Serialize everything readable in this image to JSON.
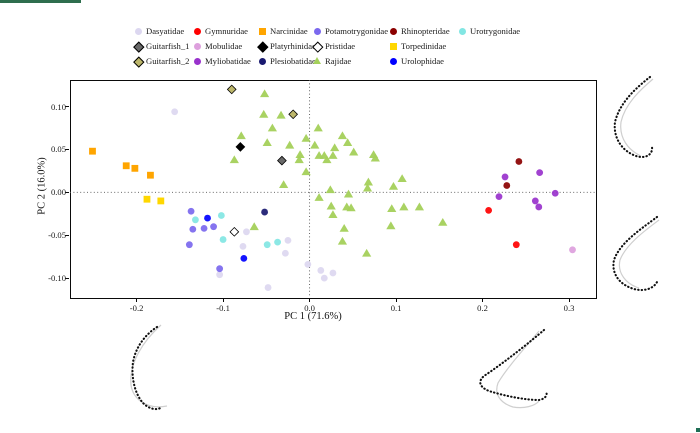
{
  "frame": {
    "accent_color": "#2e6e4e",
    "corner_dot_color": "#1f6e55"
  },
  "legend": {
    "position": "top",
    "columns": [
      {
        "items": [
          {
            "label": "Dasyatidae",
            "marker": "circle",
            "color": "#DCD7F0"
          },
          {
            "label": "Guitarfish_1",
            "marker": "diamond",
            "color": "#696969"
          },
          {
            "label": "Guitarfish_2",
            "marker": "diamond",
            "color": "#BDB76B"
          }
        ]
      },
      {
        "items": [
          {
            "label": "Gymnuridae",
            "marker": "circle",
            "color": "#FF0000"
          },
          {
            "label": "Mobulidae",
            "marker": "circle",
            "color": "#DDA0DD"
          },
          {
            "label": "Myliobatidae",
            "marker": "circle",
            "color": "#9932CC"
          }
        ]
      },
      {
        "items": [
          {
            "label": "Narcinidae",
            "marker": "square",
            "color": "#FFA500"
          },
          {
            "label": "Platyrhinidae",
            "marker": "diamond",
            "color": "#000000"
          },
          {
            "label": "Plesiobatidae",
            "marker": "circle",
            "color": "#191970"
          }
        ]
      },
      {
        "items": [
          {
            "label": "Potamotrygonidae",
            "marker": "circle",
            "color": "#7B68EE"
          },
          {
            "label": "Pristidae",
            "marker": "open-diamond",
            "color": "#FFFFFF"
          },
          {
            "label": "Rajidae",
            "marker": "triangle",
            "color": "#A4D05A"
          }
        ]
      },
      {
        "items": [
          {
            "label": "Rhinopteridae",
            "marker": "circle",
            "color": "#8B0000"
          },
          {
            "label": "Torpedinidae",
            "marker": "square",
            "color": "#FFD700"
          },
          {
            "label": "Urolophidae",
            "marker": "circle",
            "color": "#0000FF"
          }
        ]
      },
      {
        "items": [
          {
            "label": "Urotrygonidae",
            "marker": "circle",
            "color": "#82E6E3"
          }
        ]
      }
    ]
  },
  "chart_data": {
    "type": "scatter",
    "title": "",
    "xlabel": "PC 1 (71.6%)",
    "ylabel": "PC 2 (16.0%)",
    "xlim": [
      -0.277,
      0.33
    ],
    "ylim": [
      -0.122,
      0.131
    ],
    "xticks": [
      {
        "v": -0.2,
        "label": "-0.2"
      },
      {
        "v": -0.1,
        "label": "-0.1"
      },
      {
        "v": 0.0,
        "label": "0.0"
      },
      {
        "v": 0.1,
        "label": "0.1"
      },
      {
        "v": 0.2,
        "label": "0.2"
      },
      {
        "v": 0.3,
        "label": "0.3"
      }
    ],
    "yticks": [
      {
        "v": 0.1,
        "label": "0.10"
      },
      {
        "v": 0.05,
        "label": "0.05"
      },
      {
        "v": 0.0,
        "label": "0.00"
      },
      {
        "v": -0.05,
        "label": "-0.05"
      },
      {
        "v": -0.1,
        "label": "-0.10"
      }
    ],
    "grid": false,
    "reference_lines": {
      "x": 0.0,
      "y": 0.0,
      "style": "dotted"
    },
    "legend_position": "top",
    "series": [
      {
        "name": "Dasyatidae",
        "marker": "circle",
        "color": "#DCD7F0",
        "points": [
          [
            -0.156,
            0.094
          ],
          [
            -0.077,
            -0.063
          ],
          [
            -0.073,
            -0.046
          ],
          [
            -0.025,
            -0.056
          ],
          [
            -0.028,
            -0.071
          ],
          [
            -0.104,
            -0.096
          ],
          [
            -0.048,
            -0.111
          ],
          [
            -0.002,
            -0.084
          ],
          [
            0.013,
            -0.091
          ],
          [
            0.017,
            -0.1
          ],
          [
            0.027,
            -0.094
          ]
        ]
      },
      {
        "name": "Gymnuridae",
        "marker": "circle",
        "color": "#FF0000",
        "points": [
          [
            0.207,
            -0.021
          ],
          [
            0.239,
            -0.061
          ]
        ]
      },
      {
        "name": "Narcinidae",
        "marker": "square",
        "color": "#FFA500",
        "points": [
          [
            -0.251,
            0.048
          ],
          [
            -0.212,
            0.031
          ],
          [
            -0.202,
            0.028
          ],
          [
            -0.184,
            0.02
          ]
        ]
      },
      {
        "name": "Potamotrygonidae",
        "marker": "circle",
        "color": "#7B68EE",
        "points": [
          [
            -0.137,
            -0.022
          ],
          [
            -0.135,
            -0.043
          ],
          [
            -0.122,
            -0.042
          ],
          [
            -0.111,
            -0.04
          ],
          [
            -0.139,
            -0.061
          ],
          [
            -0.104,
            -0.089
          ]
        ]
      },
      {
        "name": "Rhinopteridae",
        "marker": "circle",
        "color": "#8B0000",
        "points": [
          [
            0.242,
            0.036
          ],
          [
            0.228,
            0.008
          ]
        ]
      },
      {
        "name": "Urotrygonidae",
        "marker": "circle",
        "color": "#82E6E3",
        "points": [
          [
            -0.132,
            -0.032
          ],
          [
            -0.102,
            -0.027
          ],
          [
            -0.1,
            -0.055
          ],
          [
            -0.049,
            -0.061
          ],
          [
            -0.037,
            -0.058
          ]
        ]
      },
      {
        "name": "Guitarfish_1",
        "marker": "diamond",
        "color": "#696969",
        "points": [
          [
            -0.032,
            0.037
          ]
        ]
      },
      {
        "name": "Mobulidae",
        "marker": "circle",
        "color": "#DDA0DD",
        "points": [
          [
            0.304,
            -0.067
          ]
        ]
      },
      {
        "name": "Platyrhinidae",
        "marker": "diamond",
        "color": "#000000",
        "points": [
          [
            -0.08,
            0.053
          ]
        ]
      },
      {
        "name": "Pristidae",
        "marker": "open-diamond",
        "color": "#FFFFFF",
        "points": [
          [
            -0.087,
            -0.046
          ]
        ]
      },
      {
        "name": "Torpedinidae",
        "marker": "square",
        "color": "#FFD700",
        "points": [
          [
            -0.188,
            -0.008
          ],
          [
            -0.172,
            -0.01
          ]
        ]
      },
      {
        "name": "Guitarfish_2",
        "marker": "diamond",
        "color": "#BDB76B",
        "points": [
          [
            -0.09,
            0.12
          ],
          [
            -0.019,
            0.091
          ]
        ]
      },
      {
        "name": "Myliobatidae",
        "marker": "circle",
        "color": "#9932CC",
        "points": [
          [
            0.226,
            0.018
          ],
          [
            0.266,
            0.023
          ],
          [
            0.219,
            -0.005
          ],
          [
            0.284,
            -0.001
          ],
          [
            0.261,
            -0.01
          ],
          [
            0.265,
            -0.017
          ]
        ]
      },
      {
        "name": "Plesiobatidae",
        "marker": "circle",
        "color": "#191970",
        "points": [
          [
            -0.052,
            -0.023
          ]
        ]
      },
      {
        "name": "Rajidae",
        "marker": "triangle",
        "color": "#A4D05A",
        "points": [
          [
            -0.052,
            0.115
          ],
          [
            -0.053,
            0.091
          ],
          [
            -0.033,
            0.09
          ],
          [
            -0.043,
            0.075
          ],
          [
            -0.079,
            0.066
          ],
          [
            -0.049,
            0.058
          ],
          [
            -0.023,
            0.055
          ],
          [
            -0.004,
            0.063
          ],
          [
            0.01,
            0.075
          ],
          [
            0.006,
            0.055
          ],
          [
            -0.011,
            0.044
          ],
          [
            -0.012,
            0.038
          ],
          [
            0.011,
            0.043
          ],
          [
            0.017,
            0.043
          ],
          [
            0.02,
            0.038
          ],
          [
            0.027,
            0.043
          ],
          [
            0.029,
            0.052
          ],
          [
            0.038,
            0.066
          ],
          [
            0.044,
            0.058
          ],
          [
            0.051,
            0.047
          ],
          [
            -0.087,
            0.038
          ],
          [
            0.074,
            0.044
          ],
          [
            0.076,
            0.04
          ],
          [
            -0.004,
            0.024
          ],
          [
            0.107,
            0.016
          ],
          [
            0.068,
            0.012
          ],
          [
            0.097,
            0.007
          ],
          [
            -0.03,
            0.009
          ],
          [
            0.024,
            0.003
          ],
          [
            0.011,
            -0.006
          ],
          [
            0.045,
            -0.002
          ],
          [
            0.067,
            0.005
          ],
          [
            0.025,
            -0.016
          ],
          [
            0.043,
            -0.017
          ],
          [
            0.048,
            -0.018
          ],
          [
            0.027,
            -0.026
          ],
          [
            0.095,
            -0.019
          ],
          [
            0.109,
            -0.017
          ],
          [
            0.127,
            -0.017
          ],
          [
            0.094,
            -0.039
          ],
          [
            0.154,
            -0.035
          ],
          [
            0.04,
            -0.042
          ],
          [
            0.038,
            -0.057
          ],
          [
            0.066,
            -0.071
          ],
          [
            -0.064,
            -0.04
          ]
        ]
      },
      {
        "name": "Urolophidae",
        "marker": "circle",
        "color": "#0000FF",
        "points": [
          [
            -0.118,
            -0.03
          ],
          [
            -0.076,
            -0.077
          ]
        ]
      }
    ]
  }
}
